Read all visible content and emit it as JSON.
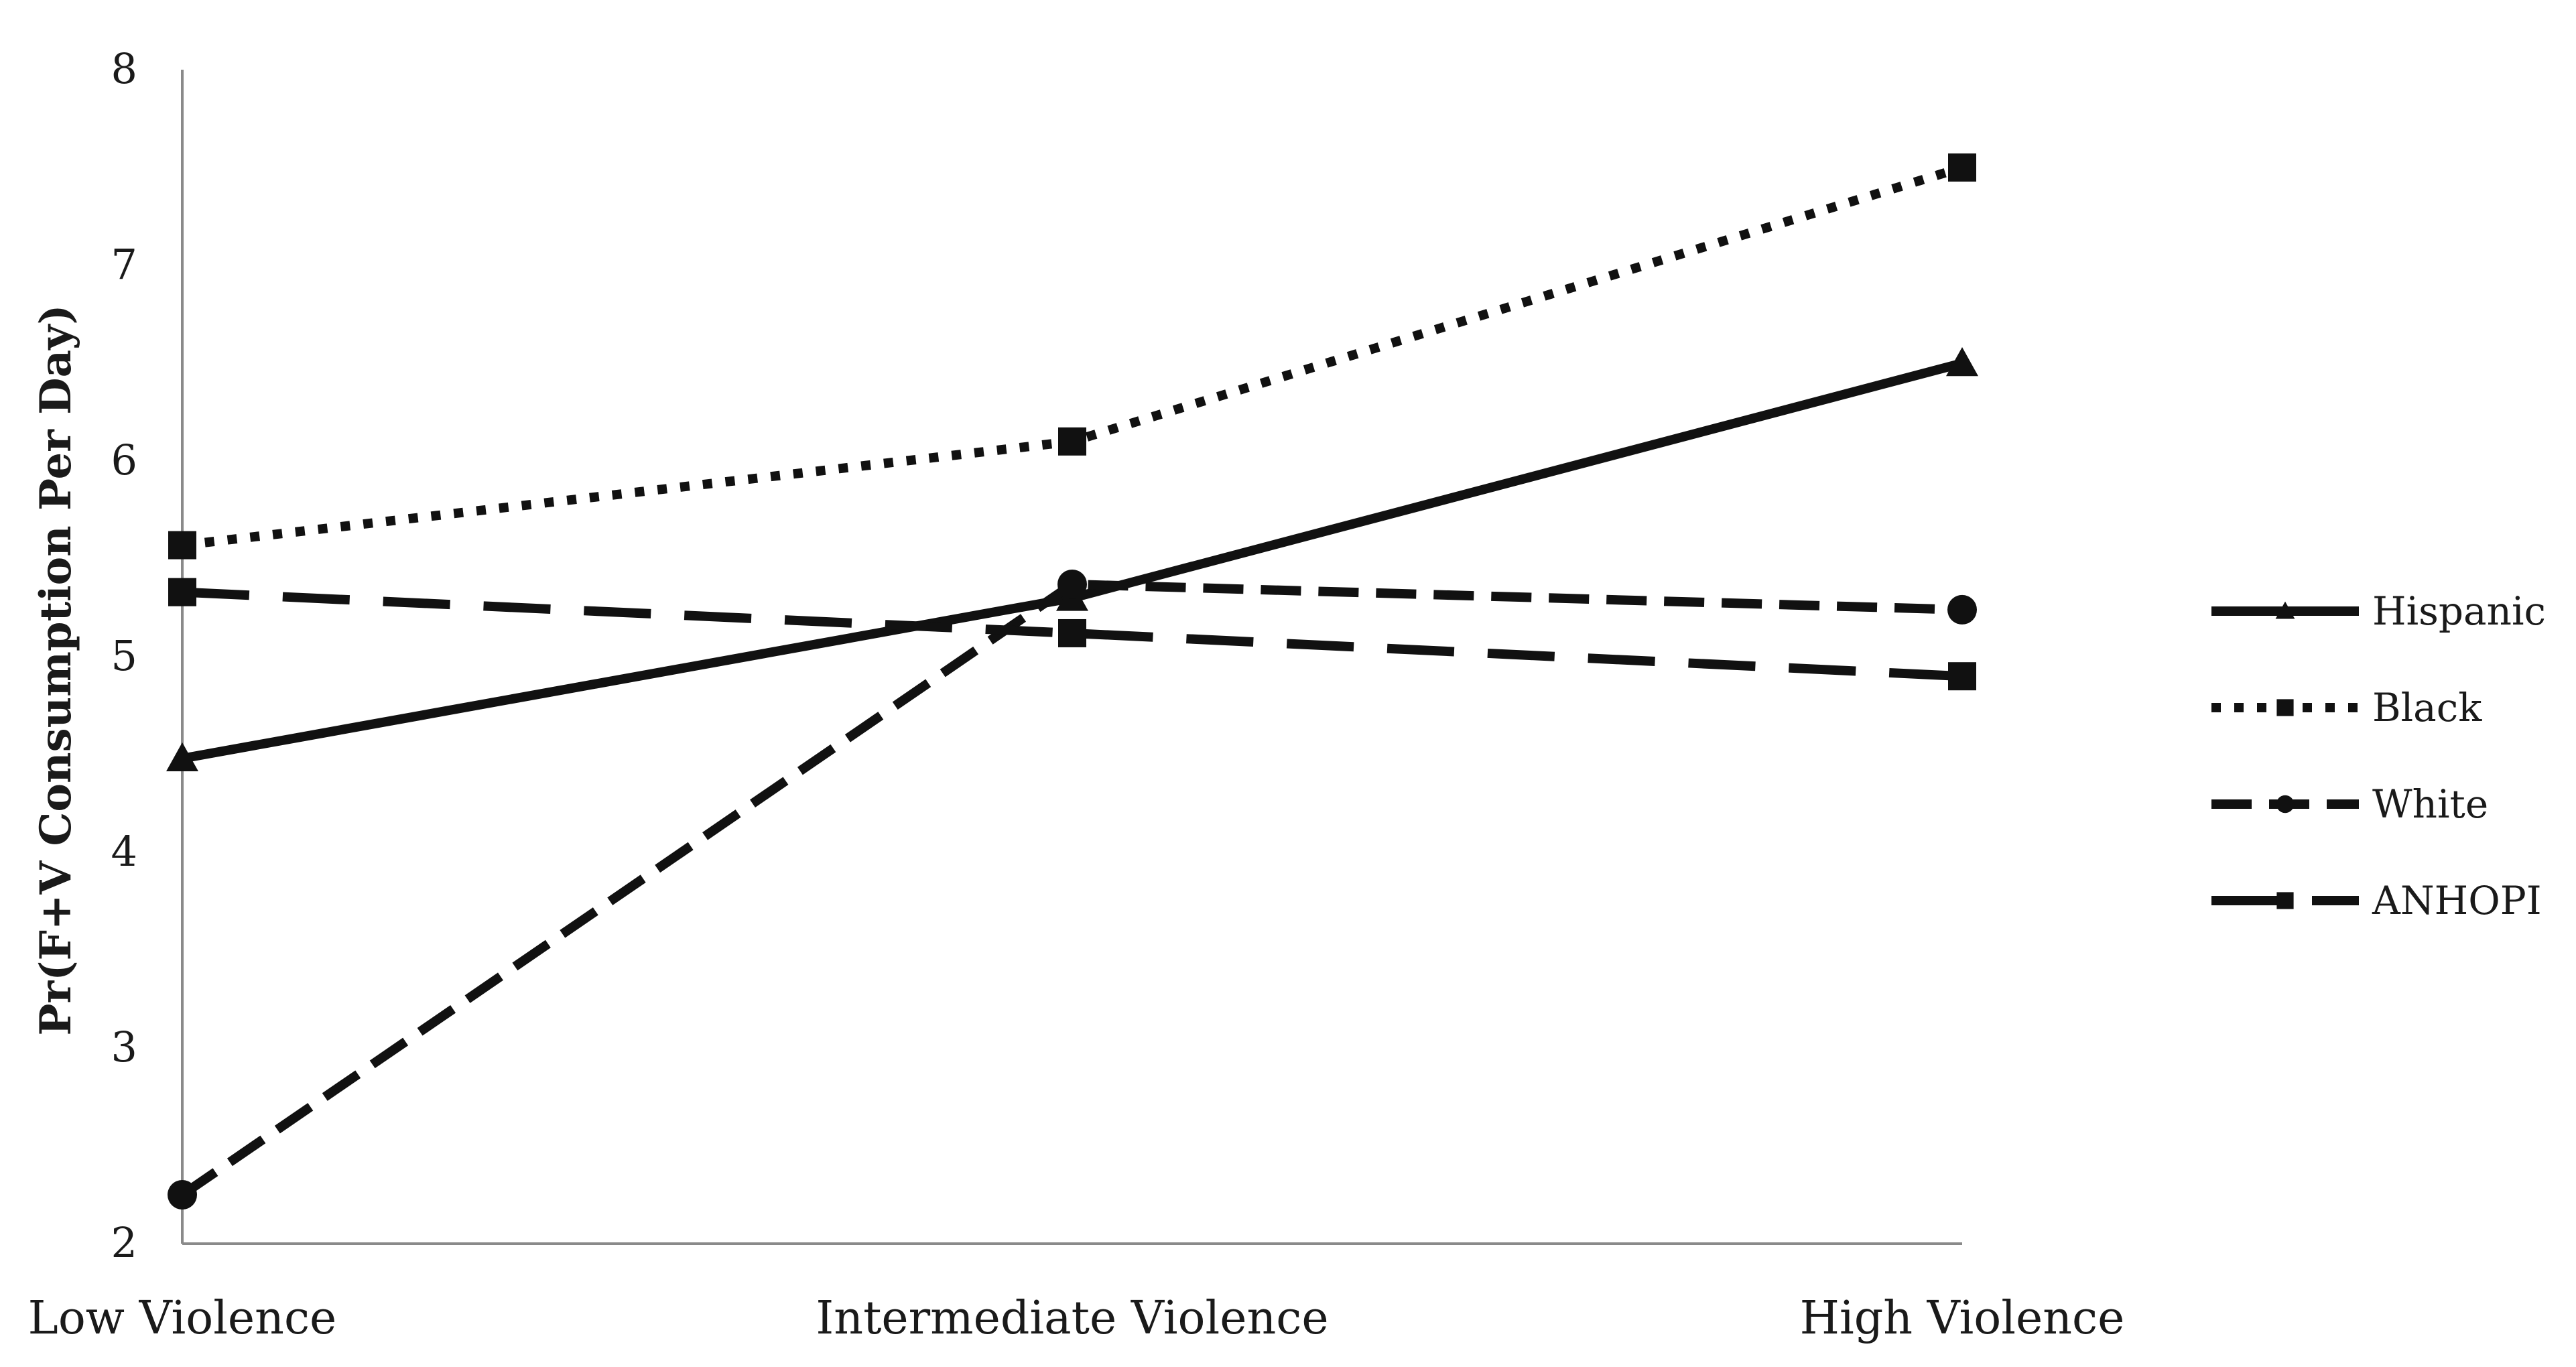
{
  "chart_data": {
    "type": "line",
    "title": "",
    "xlabel": "",
    "ylabel": "Pr(F+V Consumption Per Day)",
    "ylim": [
      2,
      8
    ],
    "yticks": [
      "2",
      "3",
      "4",
      "5",
      "6",
      "7",
      "8"
    ],
    "categories": [
      "Low Violence",
      "Intermediate Violence",
      "High Violence"
    ],
    "grid": false,
    "legend_position": "right",
    "series": [
      {
        "name": "Hispanic",
        "values": [
          4.48,
          5.3,
          6.5
        ],
        "marker": "triangle",
        "dash": "solid"
      },
      {
        "name": "Black",
        "values": [
          5.57,
          6.1,
          7.5
        ],
        "marker": "square",
        "dash": "dotted"
      },
      {
        "name": "White",
        "values": [
          2.25,
          5.37,
          5.24
        ],
        "marker": "circle",
        "dash": "dashed"
      },
      {
        "name": "ANHOPI",
        "values": [
          5.33,
          5.12,
          4.9
        ],
        "marker": "square",
        "dash": "long-dash"
      }
    ]
  }
}
